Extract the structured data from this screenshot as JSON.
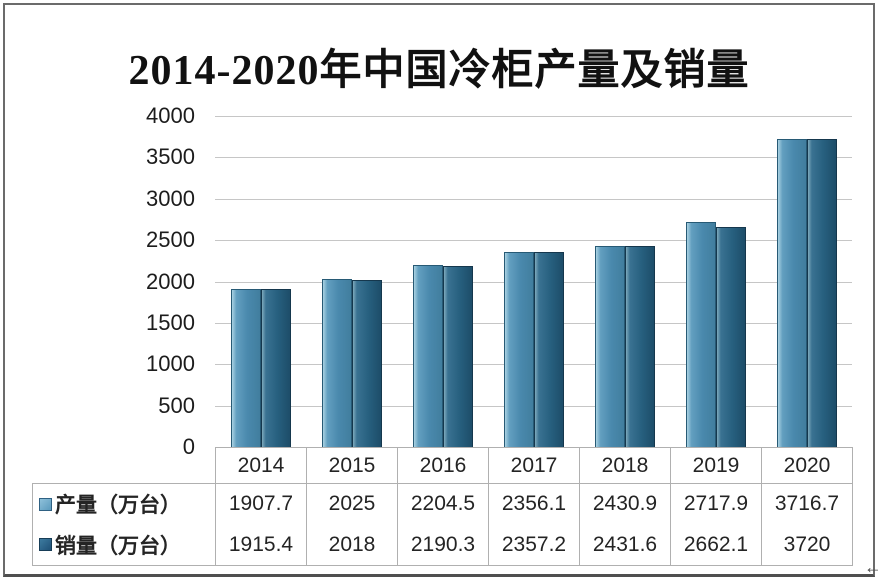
{
  "title": "2014-2020年中国冷柜产量及销量",
  "chart_data": {
    "type": "bar",
    "title": "2014-2020年中国冷柜产量及销量",
    "categories": [
      "2014",
      "2015",
      "2016",
      "2017",
      "2018",
      "2019",
      "2020"
    ],
    "series": [
      {
        "name": "产量（万台）",
        "key": "production",
        "values": [
          1907.7,
          2025,
          2204.5,
          2356.1,
          2430.9,
          2717.9,
          3716.7
        ],
        "display": [
          "1907.7",
          "2025",
          "2204.5",
          "2356.1",
          "2430.9",
          "2717.9",
          "3716.7"
        ]
      },
      {
        "name": "销量（万台）",
        "key": "sales",
        "values": [
          1915.4,
          2018,
          2190.3,
          2357.2,
          2431.6,
          2662.1,
          3720
        ],
        "display": [
          "1915.4",
          "2018",
          "2190.3",
          "2357.2",
          "2431.6",
          "2662.1",
          "3720"
        ]
      }
    ],
    "xlabel": "",
    "ylabel": "",
    "ylim": [
      0,
      4000
    ],
    "yticks": [
      "4000",
      "3500",
      "3000",
      "2500",
      "2000",
      "1500",
      "1000",
      "500",
      "0"
    ],
    "grid": true,
    "legend_position": "table-left",
    "colors": {
      "production": "#4a89ad",
      "sales": "#27607f",
      "gridline": "#c6c6c6",
      "table_border": "#b0b0b0"
    }
  },
  "corner_glyph": "←"
}
